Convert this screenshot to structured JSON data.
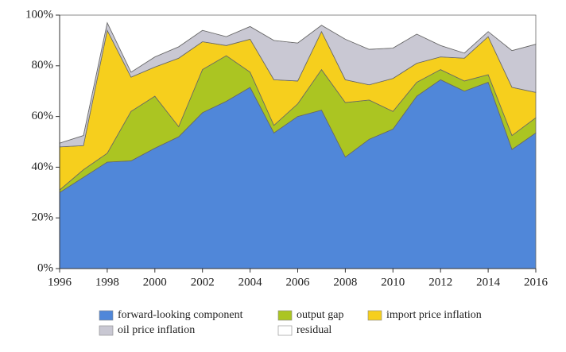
{
  "chart_data": {
    "type": "stacked-area",
    "x": [
      1996,
      1997,
      1998,
      1999,
      2000,
      2001,
      2002,
      2003,
      2004,
      2005,
      2006,
      2007,
      2008,
      2009,
      2010,
      2011,
      2012,
      2013,
      2014,
      2015,
      2016
    ],
    "xlim": [
      1996,
      2016
    ],
    "xticks": [
      1996,
      1998,
      2000,
      2002,
      2004,
      2006,
      2008,
      2010,
      2012,
      2014,
      2016
    ],
    "ylim": [
      0,
      100
    ],
    "yticks": [
      {
        "value": 0,
        "label": "0%"
      },
      {
        "value": 20,
        "label": "20%"
      },
      {
        "value": 40,
        "label": "40%"
      },
      {
        "value": 60,
        "label": "60%"
      },
      {
        "value": 80,
        "label": "80%"
      },
      {
        "value": 100,
        "label": "100%"
      }
    ],
    "legend": "bottom",
    "series": [
      {
        "name": "forward-looking component",
        "color": "#5087d9",
        "values": [
          30,
          36,
          42,
          42.5,
          47.5,
          52,
          61.5,
          66,
          71.5,
          53.5,
          60,
          62.5,
          44,
          51,
          55,
          68,
          74.5,
          70,
          73.5,
          47,
          53.5
        ]
      },
      {
        "name": "output gap",
        "color": "#abc522",
        "values": [
          1,
          3,
          3.5,
          19.5,
          20.5,
          4,
          17,
          18,
          6,
          3,
          5,
          16,
          21.5,
          15.5,
          7,
          5.5,
          4,
          4,
          3,
          5.5,
          6
        ]
      },
      {
        "name": "import price inflation",
        "color": "#f6cf1d",
        "values": [
          17,
          9.5,
          48.5,
          13.5,
          11.5,
          27,
          11,
          4,
          13,
          18,
          9,
          15,
          9,
          6,
          13,
          7.5,
          5,
          9,
          15,
          19,
          10
        ]
      },
      {
        "name": "oil price inflation",
        "color": "#c9c8d3",
        "values": [
          1.5,
          4,
          3,
          2,
          4,
          4.5,
          4.5,
          3.5,
          5,
          15.5,
          15,
          2.5,
          16,
          14,
          12,
          11.5,
          4.5,
          2,
          2,
          14.5,
          19
        ]
      },
      {
        "name": "residual",
        "color": "#ffffff",
        "values": [
          50.5,
          47.5,
          3,
          22.5,
          16.5,
          12.5,
          6,
          8.5,
          4.5,
          10,
          11,
          4,
          9.5,
          13.5,
          13,
          7.5,
          12,
          15,
          6.5,
          14,
          11.5
        ]
      }
    ]
  }
}
